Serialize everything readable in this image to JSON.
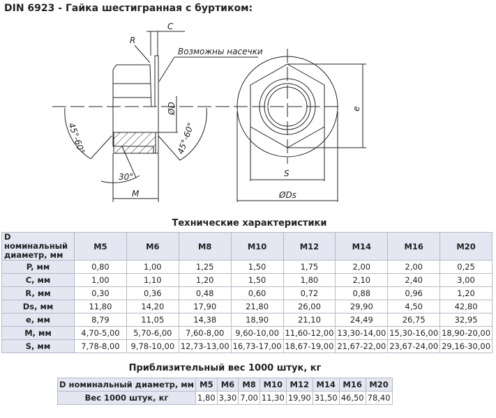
{
  "title": "DIN 6923 - Гайка шестигранная с буртиком:",
  "drawing": {
    "labels": {
      "c": "C",
      "r": "R",
      "notch": "Возможны насечки",
      "d": "ØD",
      "angle_left": "45°-60°",
      "angle_right": "45°-60°",
      "angle_30": "30°",
      "m": "M",
      "s": "S",
      "ds": "ØDs",
      "e": "e"
    }
  },
  "specs": {
    "caption": "Технические характеристики",
    "header_label": "D номинальный диаметр, мм",
    "sizes": [
      "M5",
      "M6",
      "M8",
      "M10",
      "M12",
      "M14",
      "M16",
      "M20"
    ],
    "rows": [
      {
        "label": "P, мм",
        "values": [
          "0,80",
          "1,00",
          "1,25",
          "1,50",
          "1,75",
          "2,00",
          "2,00",
          "0,25"
        ]
      },
      {
        "label": "C, мм",
        "values": [
          "1,00",
          "1,10",
          "1,20",
          "1,50",
          "1,80",
          "2,10",
          "2,40",
          "3,00"
        ]
      },
      {
        "label": "R, мм",
        "values": [
          "0,30",
          "0,36",
          "0,48",
          "0,60",
          "0,72",
          "0,88",
          "0,96",
          "1,20"
        ]
      },
      {
        "label": "Ds, мм",
        "values": [
          "11,80",
          "14,20",
          "17,90",
          "21,80",
          "26,00",
          "29,90",
          "4,50",
          "42,80"
        ]
      },
      {
        "label": "e, мм",
        "values": [
          "8,79",
          "11,05",
          "14,38",
          "18,90",
          "21,10",
          "24,49",
          "26,75",
          "32,95"
        ]
      },
      {
        "label": "M, мм",
        "values": [
          "4,70-5,00",
          "5,70-6,00",
          "7,60-8,00",
          "9,60-10,00",
          "11,60-12,00",
          "13,30-14,00",
          "15,30-16,00",
          "18,90-20,00"
        ]
      },
      {
        "label": "S, мм",
        "values": [
          "7,78-8,00",
          "9,78-10,00",
          "12,73-13,00",
          "16,73-17,00",
          "18,67-19,00",
          "21,67-22,00",
          "23,67-24,00",
          "29,16-30,00"
        ]
      }
    ]
  },
  "weight": {
    "caption": "Приблизительный вес 1000 штук, кг",
    "header_label": "D номинальный диаметр, мм",
    "sizes": [
      "M5",
      "M6",
      "M8",
      "M10",
      "M12",
      "M14",
      "M16",
      "M20"
    ],
    "row_label": "Вес 1000 штук, кг",
    "values": [
      "1,80",
      "3,30",
      "7,00",
      "11,30",
      "19,90",
      "31,50",
      "46,50",
      "78,40"
    ]
  }
}
